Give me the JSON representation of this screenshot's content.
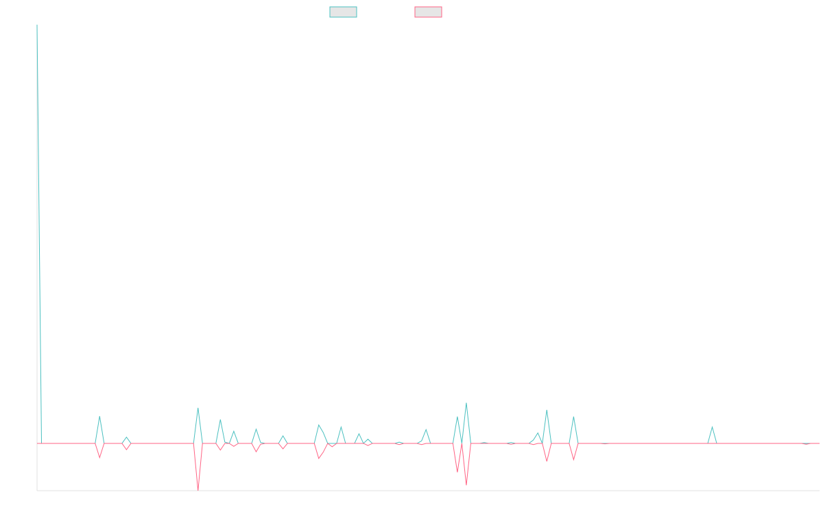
{
  "chart_data": {
    "type": "line",
    "ylim": [
      -11.3,
      100
    ],
    "series": [
      {
        "color": "#4bc0c0",
        "values": [
          100,
          0,
          0,
          0,
          0,
          0,
          0,
          0,
          0,
          0,
          0,
          0,
          0,
          0,
          6.5,
          0,
          0,
          0,
          0,
          0,
          1.5,
          0,
          0,
          0,
          0,
          0,
          0,
          0,
          0,
          0,
          0,
          0,
          0,
          0,
          0,
          0,
          8.5,
          0,
          0,
          0,
          0,
          5.7,
          0.3,
          0,
          2.9,
          0,
          0,
          0,
          0,
          3.4,
          0.2,
          0,
          0,
          0,
          0,
          1.8,
          0,
          0,
          0,
          0,
          0,
          0,
          0,
          4.4,
          2.6,
          0,
          0,
          0,
          3.9,
          0,
          0,
          0,
          2.3,
          0,
          1,
          0,
          0,
          0,
          0,
          0,
          0,
          0.3,
          0,
          0,
          0,
          0,
          0.6,
          3.3,
          0,
          0,
          0,
          0,
          0,
          0,
          6.4,
          0,
          9.7,
          0,
          0,
          0,
          0.2,
          0,
          0,
          0,
          0,
          0,
          0.2,
          0,
          0,
          0,
          0,
          0.8,
          2.5,
          0,
          8,
          0,
          0,
          0,
          0,
          0,
          6.4,
          0,
          0,
          0,
          0,
          0,
          0,
          0,
          0,
          0,
          0,
          0,
          0,
          0,
          0,
          0,
          0,
          0,
          0,
          0,
          0,
          0,
          0,
          0,
          0,
          0,
          0,
          0,
          0,
          0,
          0,
          3.9,
          0,
          0,
          0,
          0,
          0,
          0,
          0,
          0,
          0,
          0,
          0,
          0,
          0,
          0,
          0,
          0,
          0,
          0,
          0,
          0,
          0,
          0,
          0,
          0
        ]
      },
      {
        "color": "#ff6384",
        "values": [
          0,
          0,
          0,
          0,
          0,
          0,
          0,
          0,
          0,
          0,
          0,
          0,
          0,
          0,
          -3.4,
          0,
          0,
          0,
          0,
          0,
          -1.5,
          0,
          0,
          0,
          0,
          0,
          0,
          0,
          0,
          0,
          0,
          0,
          0,
          0,
          0,
          0,
          -11.3,
          0,
          0,
          0,
          0,
          -1.6,
          0,
          0,
          -0.7,
          0,
          0,
          0,
          0,
          -2,
          -0.2,
          0,
          0,
          0,
          0,
          -1.3,
          0,
          0,
          0,
          0,
          0,
          0,
          0,
          -3.6,
          -2.1,
          0,
          -0.8,
          0,
          0,
          0,
          0,
          0,
          0,
          0,
          -0.5,
          0,
          0,
          0,
          0,
          0,
          0,
          -0.3,
          0,
          0,
          0,
          0,
          -0.3,
          0,
          0,
          0,
          0,
          0,
          0,
          0,
          -6.9,
          0,
          -10,
          0,
          0,
          0,
          0,
          0,
          0,
          0,
          0,
          0,
          -0.2,
          0,
          0,
          0,
          0,
          -0.3,
          0,
          0,
          -4.3,
          0,
          0,
          0,
          0,
          0,
          -3.9,
          0,
          0,
          0,
          0,
          0,
          0,
          -0.1,
          0,
          0,
          0,
          0,
          0,
          0,
          0,
          0,
          0,
          0,
          0,
          0,
          0,
          0,
          0,
          0,
          0,
          0,
          0,
          0,
          0,
          0,
          0,
          0,
          0,
          0,
          0,
          0,
          0,
          0,
          0,
          0,
          0,
          0,
          0,
          0,
          0,
          0,
          0,
          0,
          0,
          0,
          0,
          0,
          -0.2,
          0,
          0,
          0
        ]
      }
    ]
  }
}
